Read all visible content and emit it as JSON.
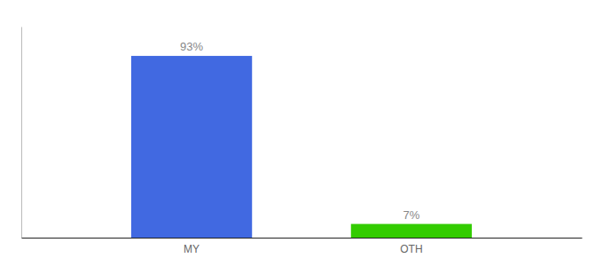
{
  "chart_data": {
    "type": "bar",
    "categories": [
      "MY",
      "OTH"
    ],
    "values": [
      93,
      7
    ],
    "value_labels": [
      "93%",
      "7%"
    ],
    "colors": [
      "#4169e1",
      "#33cc00"
    ],
    "ylim": [
      0,
      108
    ],
    "data_labels": true,
    "tick_labels": "x",
    "grid": false
  }
}
